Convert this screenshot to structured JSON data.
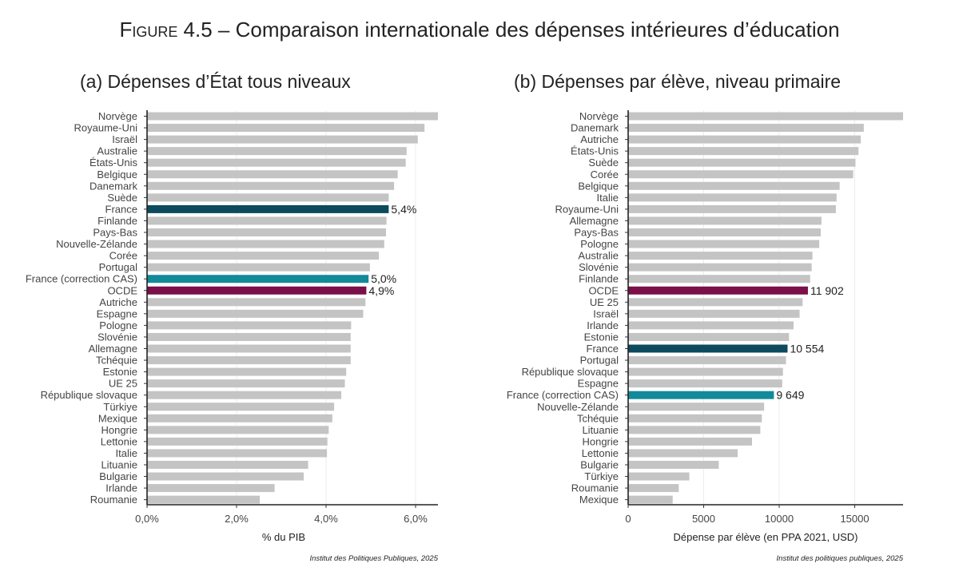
{
  "figure": {
    "label": "Figure 4.5",
    "title": "Comparaison internationale des dépenses intérieures d’éducation"
  },
  "chart_data": [
    {
      "type": "bar",
      "orientation": "horizontal",
      "title": "(a) Dépenses d’État tous niveaux",
      "xlabel": "% du PIB",
      "ylabel": "",
      "xlim": [
        0,
        6.5
      ],
      "x_ticks": [
        0,
        2,
        4,
        6
      ],
      "x_tick_labels": [
        "0,0%",
        "2,0%",
        "4,0%",
        "6,0%"
      ],
      "grid": "vertical",
      "source": "Institut des Politiques Publiques, 2025",
      "categories": [
        "Norvège",
        "Royaume-Uni",
        "Israël",
        "Australie",
        "États-Unis",
        "Belgique",
        "Danemark",
        "Suède",
        "France",
        "Finlande",
        "Pays-Bas",
        "Nouvelle-Zélande",
        "Corée",
        "Portugal",
        "France (correction CAS)",
        "OCDE",
        "Autriche",
        "Espagne",
        "Pologne",
        "Slovénie",
        "Allemagne",
        "Tchéquie",
        "Estonie",
        "UE 25",
        "République slovaque",
        "Türkiye",
        "Mexique",
        "Hongrie",
        "Lettonie",
        "Italie",
        "Lituanie",
        "Bulgarie",
        "Irlande",
        "Roumanie"
      ],
      "values": [
        6.5,
        6.2,
        6.05,
        5.8,
        5.78,
        5.6,
        5.52,
        5.4,
        5.4,
        5.35,
        5.34,
        5.3,
        5.18,
        4.98,
        4.95,
        4.9,
        4.88,
        4.83,
        4.56,
        4.55,
        4.55,
        4.55,
        4.45,
        4.42,
        4.34,
        4.18,
        4.14,
        4.06,
        4.03,
        4.02,
        3.6,
        3.5,
        2.85,
        2.52
      ],
      "highlight": {
        "France": {
          "color": "#0d4a5e",
          "label": "5,4%"
        },
        "France (correction CAS)": {
          "color": "#128a9a",
          "label": "5,0%"
        },
        "OCDE": {
          "color": "#7a0f4a",
          "label": "4,9%"
        }
      },
      "bar_color": "#c4c4c4"
    },
    {
      "type": "bar",
      "orientation": "horizontal",
      "title": "(b) Dépenses par élève, niveau primaire",
      "xlabel": "Dépense par élève (en PPA 2021, USD)",
      "ylabel": "",
      "xlim": [
        0,
        18200
      ],
      "x_ticks": [
        0,
        5000,
        10000,
        15000
      ],
      "x_tick_labels": [
        "0",
        "5000",
        "10000",
        "15000"
      ],
      "grid": "vertical",
      "source": "Institut des politiques publiques, 2025",
      "categories": [
        "Norvège",
        "Danemark",
        "Autriche",
        "États-Unis",
        "Suède",
        "Corée",
        "Belgique",
        "Italie",
        "Royaume-Uni",
        "Allemagne",
        "Pays-Bas",
        "Pologne",
        "Australie",
        "Slovénie",
        "Finlande",
        "OCDE",
        "UE 25",
        "Israël",
        "Irlande",
        "Estonie",
        "France",
        "Portugal",
        "République slovaque",
        "Espagne",
        "France (correction CAS)",
        "Nouvelle-Zélande",
        "Tchéquie",
        "Lituanie",
        "Hongrie",
        "Lettonie",
        "Bulgarie",
        "Türkiye",
        "Roumanie",
        "Mexique"
      ],
      "values": [
        18200,
        15600,
        15400,
        15250,
        15050,
        14900,
        14000,
        13800,
        13750,
        12800,
        12750,
        12650,
        12200,
        12150,
        12050,
        11902,
        11550,
        11350,
        10950,
        10650,
        10554,
        10450,
        10250,
        10200,
        9649,
        9000,
        8850,
        8750,
        8200,
        7250,
        6000,
        4050,
        3350,
        2950
      ],
      "highlight": {
        "OCDE": {
          "color": "#7a0f4a",
          "label": "11 902"
        },
        "France": {
          "color": "#0d4a5e",
          "label": "10 554"
        },
        "France (correction CAS)": {
          "color": "#128a9a",
          "label": "9 649"
        }
      },
      "bar_color": "#c4c4c4"
    }
  ]
}
